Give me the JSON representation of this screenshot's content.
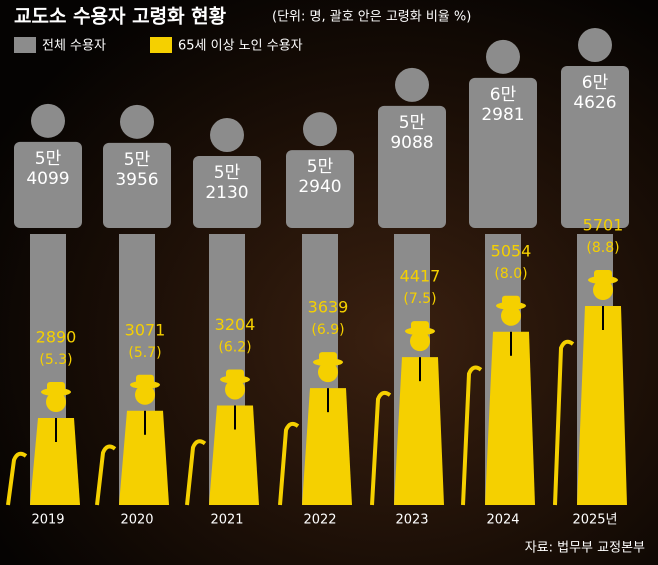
{
  "chart_data": {
    "type": "pictogram",
    "title": "교도소 수용자 고령화 현황",
    "subtitle": "(단위: 명, 괄호 안은 고령화 비율 %)",
    "categories": [
      "2019",
      "2020",
      "2021",
      "2022",
      "2023",
      "2024",
      "2025년"
    ],
    "series": [
      {
        "name": "전체 수용자",
        "color": "#8c8c8c",
        "values": [
          54099,
          53956,
          52130,
          52940,
          59088,
          62981,
          64626
        ],
        "value_labels": [
          [
            "5만",
            "4099"
          ],
          [
            "5만",
            "3956"
          ],
          [
            "5만",
            "2130"
          ],
          [
            "5만",
            "2940"
          ],
          [
            "5만",
            "9088"
          ],
          [
            "6만",
            "2981"
          ],
          [
            "6만",
            "4626"
          ]
        ]
      },
      {
        "name": "65세 이상 노인 수용자",
        "color": "#f5d000",
        "values": [
          2890,
          3071,
          3204,
          3639,
          4417,
          5054,
          5701
        ],
        "shares": [
          5.3,
          5.7,
          6.2,
          6.9,
          7.5,
          8.0,
          8.8
        ],
        "share_labels": [
          "(5.3)",
          "(5.7)",
          "(6.2)",
          "(6.9)",
          "(7.5)",
          "(8.0)",
          "(8.8)"
        ]
      }
    ],
    "source": "자료: 법무부 교정본부"
  }
}
